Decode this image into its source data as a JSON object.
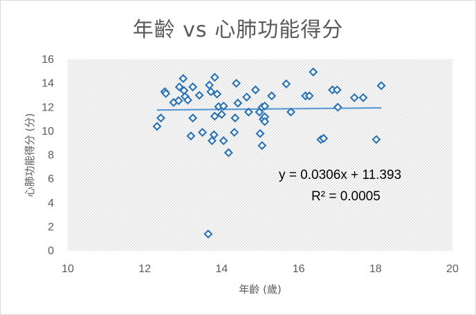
{
  "chart_data": {
    "type": "scatter",
    "title": "年齡 vs 心肺功能得分",
    "xlabel": "年齡 (歲)",
    "ylabel": "心肺功能得分 (分)",
    "xlim": [
      10,
      20
    ],
    "ylim": [
      0,
      16
    ],
    "xticks": [
      "10",
      "12",
      "14",
      "16",
      "18",
      "20"
    ],
    "yticks": [
      "0",
      "2",
      "4",
      "6",
      "8",
      "10",
      "12",
      "14",
      "16"
    ],
    "grid": false,
    "plot_background": "diagonal hatch",
    "marker_color": "#2e75b6",
    "trendline_color": "#5b9bd5",
    "trendline": {
      "slope": 0.0306,
      "intercept": 11.393
    },
    "equation": "y = 0.0306x + 11.393",
    "r_squared": "R² = 0.0005",
    "points": [
      [
        12.32,
        10.4
      ],
      [
        12.42,
        11.1
      ],
      [
        12.52,
        13.3
      ],
      [
        12.55,
        13.15
      ],
      [
        12.75,
        12.4
      ],
      [
        12.88,
        12.55
      ],
      [
        12.9,
        13.7
      ],
      [
        13.0,
        14.4
      ],
      [
        13.02,
        13.4
      ],
      [
        13.05,
        12.9
      ],
      [
        13.12,
        12.6
      ],
      [
        13.2,
        9.6
      ],
      [
        13.25,
        13.7
      ],
      [
        13.25,
        11.1
      ],
      [
        13.42,
        13.0
      ],
      [
        13.5,
        9.9
      ],
      [
        13.65,
        1.4
      ],
      [
        13.68,
        13.85
      ],
      [
        13.72,
        13.3
      ],
      [
        13.75,
        9.2
      ],
      [
        13.8,
        9.7
      ],
      [
        13.82,
        11.25
      ],
      [
        13.82,
        14.5
      ],
      [
        13.88,
        13.1
      ],
      [
        13.92,
        12.05
      ],
      [
        14.0,
        11.4
      ],
      [
        14.05,
        9.2
      ],
      [
        14.05,
        12.1
      ],
      [
        14.18,
        8.2
      ],
      [
        14.33,
        9.9
      ],
      [
        14.35,
        11.1
      ],
      [
        14.38,
        14.0
      ],
      [
        14.42,
        12.35
      ],
      [
        14.65,
        12.85
      ],
      [
        14.7,
        11.6
      ],
      [
        14.88,
        13.45
      ],
      [
        14.98,
        11.6
      ],
      [
        15.0,
        9.8
      ],
      [
        15.05,
        8.8
      ],
      [
        15.05,
        12.0
      ],
      [
        15.08,
        11.0
      ],
      [
        15.12,
        11.2
      ],
      [
        15.12,
        10.8
      ],
      [
        15.12,
        12.1
      ],
      [
        15.3,
        12.95
      ],
      [
        15.68,
        13.95
      ],
      [
        15.8,
        11.6
      ],
      [
        16.18,
        12.95
      ],
      [
        16.28,
        12.95
      ],
      [
        16.38,
        14.95
      ],
      [
        16.58,
        9.3
      ],
      [
        16.65,
        9.4
      ],
      [
        16.88,
        13.45
      ],
      [
        17.0,
        13.45
      ],
      [
        17.02,
        12.0
      ],
      [
        17.45,
        12.8
      ],
      [
        17.68,
        12.8
      ],
      [
        18.02,
        9.3
      ],
      [
        18.15,
        13.8
      ]
    ]
  }
}
